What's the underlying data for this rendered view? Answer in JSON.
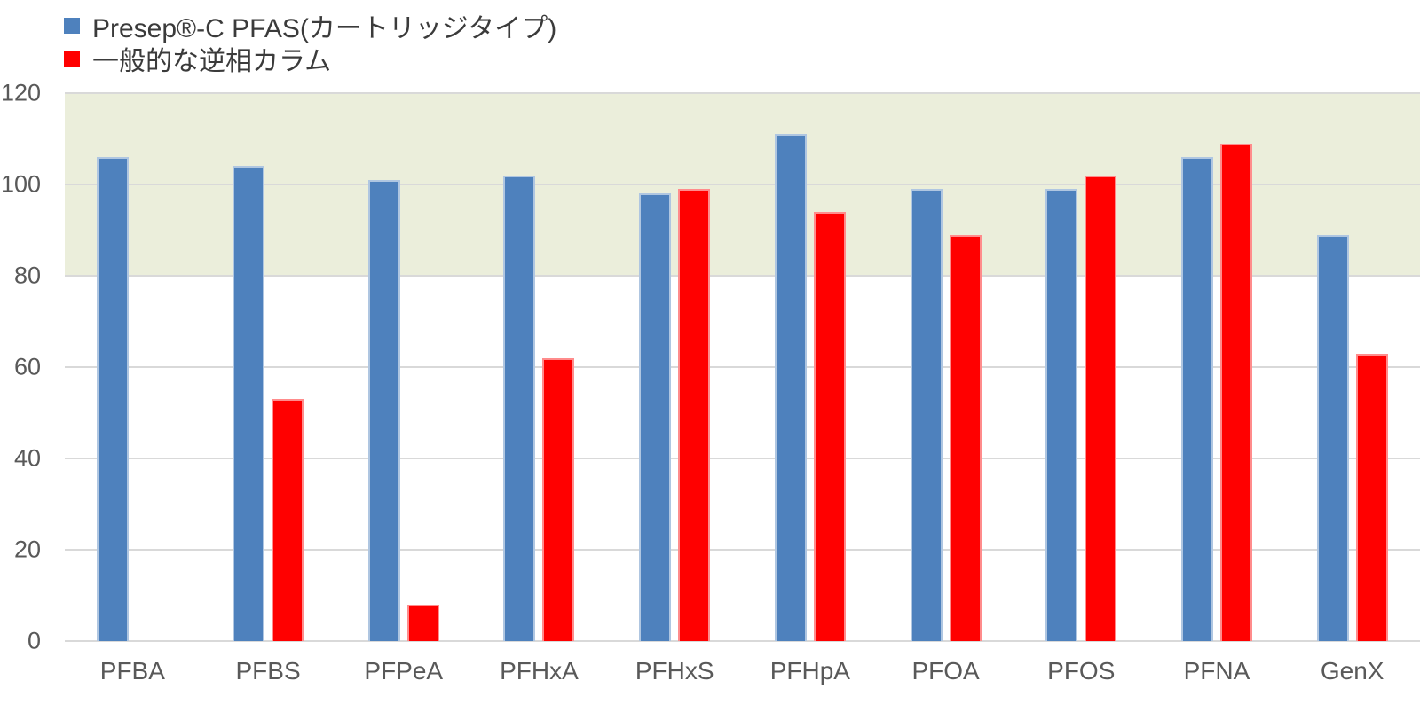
{
  "chart_data": {
    "type": "bar",
    "title": "",
    "xlabel": "",
    "ylabel": "",
    "categories": [
      "PFBA",
      "PFBS",
      "PFPeA",
      "PFHxA",
      "PFHxS",
      "PFHpA",
      "PFOA",
      "PFOS",
      "PFNA",
      "GenX"
    ],
    "series": [
      {
        "key": "presep-c-pfas",
        "name": "Presep®-C PFAS(カートリッジタイプ)",
        "color": "#4e81bd",
        "values": [
          106,
          104,
          101,
          102,
          98,
          111,
          99,
          99,
          106,
          89
        ]
      },
      {
        "key": "generic-reversed-phase-column",
        "name": "一般的な逆相カラム",
        "color": "#ff0000",
        "values": [
          null,
          53,
          8,
          62,
          99,
          94,
          89,
          102,
          109,
          63
        ]
      }
    ],
    "ylim": [
      0,
      120
    ],
    "yticks": [
      0,
      20,
      40,
      60,
      80,
      100,
      120
    ],
    "grid": true,
    "gridline_color": "#d9d9d9",
    "tick_label_color": "#595959",
    "legend_position": "top-left",
    "band": {
      "from": 80,
      "to": 120,
      "color": "#ebeedb"
    }
  }
}
